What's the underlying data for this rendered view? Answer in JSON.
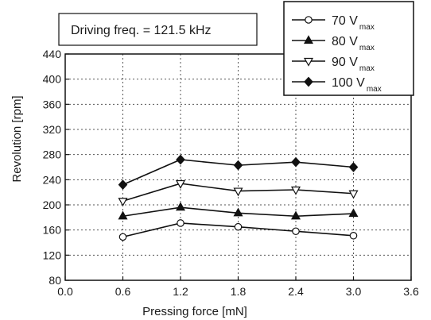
{
  "chart_data": {
    "type": "line",
    "xlabel": "Pressing force  [mN]",
    "ylabel": "Revolution [rpm]",
    "xlim": [
      0.0,
      3.6
    ],
    "ylim": [
      80,
      440
    ],
    "x_ticks": [
      "0.0",
      "0.6",
      "1.2",
      "1.8",
      "2.4",
      "3.0",
      "3.6"
    ],
    "y_ticks": [
      "80",
      "120",
      "160",
      "200",
      "240",
      "280",
      "320",
      "360",
      "400",
      "440"
    ],
    "grid": true,
    "annotation": "Driving freq. = 121.5 kHz",
    "legend_position": "top-right",
    "x": [
      0.6,
      1.2,
      1.8,
      2.4,
      3.0
    ],
    "series": [
      {
        "name": "70 V",
        "subscript": "max",
        "marker": "circle-open",
        "values": [
          149,
          171,
          165,
          158,
          151
        ]
      },
      {
        "name": "80 V",
        "subscript": "max",
        "marker": "triangle-up-filled",
        "values": [
          182,
          196,
          187,
          182,
          186
        ]
      },
      {
        "name": "90 V",
        "subscript": "max",
        "marker": "triangle-down-open",
        "values": [
          206,
          234,
          222,
          224,
          218
        ]
      },
      {
        "name": "100 V",
        "subscript": "max",
        "marker": "diamond-filled",
        "values": [
          232,
          272,
          263,
          268,
          260
        ]
      }
    ]
  }
}
